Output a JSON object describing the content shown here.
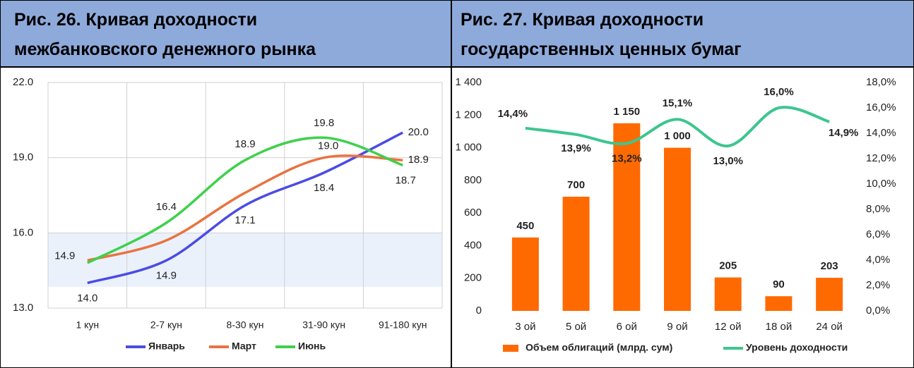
{
  "chart_data": [
    {
      "type": "line",
      "title": [
        "Рис. 26. Кривая доходности",
        "межбанковского денежного рынка"
      ],
      "categories": [
        "1 кун",
        "2-7 кун",
        "8-30 кун",
        "31-90 кун",
        "91-180 кун"
      ],
      "ylim": [
        13,
        22
      ],
      "yticks": [
        {
          "value": 13,
          "label": "13.0"
        },
        {
          "value": 16,
          "label": "16.0"
        },
        {
          "value": 19,
          "label": "19.0"
        },
        {
          "value": 22,
          "label": "22.0"
        }
      ],
      "grid": true,
      "shaded_range": [
        13.85,
        16
      ],
      "series": [
        {
          "name": "Январь",
          "color": "#4b4be6",
          "values": [
            14.0,
            14.9,
            17.1,
            18.4,
            20.0
          ],
          "value_labels": [
            "14.0",
            "14.9",
            "17.1",
            "18.4",
            "20.0"
          ]
        },
        {
          "name": "Март",
          "color": "#ea7340",
          "values": [
            14.9,
            15.7,
            17.6,
            19.0,
            18.9
          ],
          "value_labels": [
            "14.9",
            null,
            null,
            "19.0",
            "18.9"
          ]
        },
        {
          "name": "Июнь",
          "color": "#3ed14b",
          "values": [
            14.8,
            16.4,
            18.9,
            19.8,
            18.7
          ],
          "value_labels": [
            null,
            "16.4",
            "18.9",
            "19.8",
            "18.7"
          ]
        }
      ]
    },
    {
      "type": "bar_line",
      "title": [
        "Рис. 27. Кривая доходности",
        "государственных ценных бумаг"
      ],
      "categories": [
        "3 ой",
        "5 ой",
        "6 ой",
        "9 ой",
        "12 ой",
        "18 ой",
        "24 ой"
      ],
      "ylim": [
        0,
        1400
      ],
      "yticks": [
        0,
        200,
        400,
        600,
        800,
        {
          "value": 1000,
          "label": "1 000"
        },
        {
          "value": 1200,
          "label": "1 200"
        },
        {
          "value": 1400,
          "label": "1 400"
        }
      ],
      "y2lim": [
        0,
        18
      ],
      "y2ticks": [
        {
          "value": 0,
          "label": "0,0%"
        },
        {
          "value": 2,
          "label": "2,0%"
        },
        {
          "value": 4,
          "label": "4,0%"
        },
        {
          "value": 6,
          "label": "6,0%"
        },
        {
          "value": 8,
          "label": "8,0%"
        },
        {
          "value": 10,
          "label": "10,0%"
        },
        {
          "value": 12,
          "label": "12,0%"
        },
        {
          "value": 14,
          "label": "14,0%"
        },
        {
          "value": 16,
          "label": "16,0%"
        },
        {
          "value": 18,
          "label": "18,0%"
        }
      ],
      "series": [
        {
          "name": "Объем облигаций (млрд. сум)",
          "color": "#ff6a00",
          "values": [
            450,
            700,
            1150,
            1000,
            205,
            90,
            203
          ],
          "value_labels": [
            "450",
            "700",
            "1 150",
            "1 000",
            "205",
            "90",
            "203"
          ]
        },
        {
          "name": "Уровень доходности",
          "color": "#3cc68f",
          "axis": "y2",
          "values": [
            14.4,
            13.9,
            13.2,
            15.1,
            13.0,
            16.0,
            14.9
          ],
          "value_labels": [
            "14,4%",
            "13,9%",
            "13,2%",
            "15,1%",
            "13,0%",
            "16,0%",
            "14,9%"
          ]
        }
      ]
    }
  ]
}
